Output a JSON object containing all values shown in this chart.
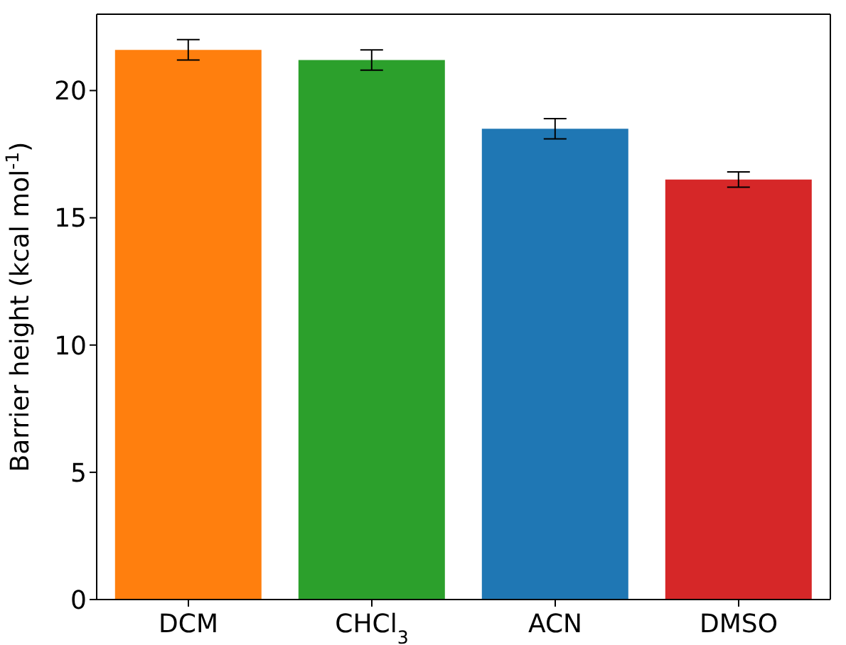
{
  "chart_data": {
    "type": "bar",
    "ylabel": "Barrier height (kcal mol$^{-1}$)",
    "categories": [
      "DCM",
      "CHCl$_{3}$",
      "ACN",
      "DMSO"
    ],
    "values": [
      21.6,
      21.2,
      18.5,
      16.5
    ],
    "errors": [
      0.4,
      0.4,
      0.4,
      0.3
    ],
    "colors": [
      "#ff7f0e",
      "#2ca02c",
      "#1f77b4",
      "#d62728"
    ],
    "ylim": [
      0,
      23
    ],
    "yticks": [
      0,
      5,
      10,
      15,
      20
    ]
  }
}
